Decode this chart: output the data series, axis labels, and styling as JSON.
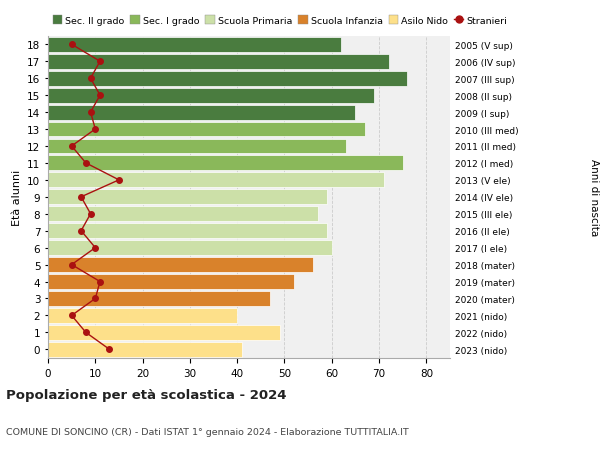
{
  "ages": [
    0,
    1,
    2,
    3,
    4,
    5,
    6,
    7,
    8,
    9,
    10,
    11,
    12,
    13,
    14,
    15,
    16,
    17,
    18
  ],
  "years_labels": [
    "2023 (nido)",
    "2022 (nido)",
    "2021 (nido)",
    "2020 (mater)",
    "2019 (mater)",
    "2018 (mater)",
    "2017 (I ele)",
    "2016 (II ele)",
    "2015 (III ele)",
    "2014 (IV ele)",
    "2013 (V ele)",
    "2012 (I med)",
    "2011 (II med)",
    "2010 (III med)",
    "2009 (I sup)",
    "2008 (II sup)",
    "2007 (III sup)",
    "2006 (IV sup)",
    "2005 (V sup)"
  ],
  "bar_values": [
    41,
    49,
    40,
    47,
    52,
    56,
    60,
    59,
    57,
    59,
    71,
    75,
    63,
    67,
    65,
    69,
    76,
    72,
    62
  ],
  "bar_colors": [
    "#fde08a",
    "#fde08a",
    "#fde08a",
    "#d9822b",
    "#d9822b",
    "#d9822b",
    "#cce0a8",
    "#cce0a8",
    "#cce0a8",
    "#cce0a8",
    "#cce0a8",
    "#8ab85a",
    "#8ab85a",
    "#8ab85a",
    "#4a7c3f",
    "#4a7c3f",
    "#4a7c3f",
    "#4a7c3f",
    "#4a7c3f"
  ],
  "stranieri_values": [
    13,
    8,
    5,
    10,
    11,
    5,
    10,
    7,
    9,
    7,
    15,
    8,
    5,
    10,
    9,
    11,
    9,
    11,
    5
  ],
  "legend_labels": [
    "Sec. II grado",
    "Sec. I grado",
    "Scuola Primaria",
    "Scuola Infanzia",
    "Asilo Nido",
    "Stranieri"
  ],
  "legend_colors": [
    "#4a7c3f",
    "#8ab85a",
    "#cce0a8",
    "#d9822b",
    "#fde08a",
    "#aa1111"
  ],
  "title": "Popolazione per età scolastica - 2024",
  "subtitle": "COMUNE DI SONCINO (CR) - Dati ISTAT 1° gennaio 2024 - Elaborazione TUTTITALIA.IT",
  "ylabel_left": "Età alunni",
  "ylabel_right": "Anni di nascita",
  "xlim": [
    0,
    85
  ],
  "plot_bg": "#f0f0f0",
  "bar_height": 0.88
}
